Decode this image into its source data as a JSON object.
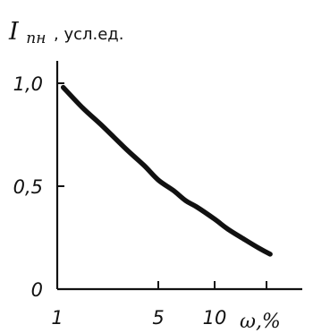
{
  "chart_data": {
    "type": "line",
    "title": "",
    "ylabel": "I",
    "ylabel_subscript": "пн",
    "ylabel_units": ", усл.ед.",
    "xlabel": "ω,%",
    "x_scale": "log",
    "xlim": [
      1,
      20
    ],
    "ylim": [
      0,
      1.0
    ],
    "x_ticks": [
      {
        "value": 1,
        "label": "1"
      },
      {
        "value": 5,
        "label": "5"
      },
      {
        "value": 10,
        "label": "10"
      }
    ],
    "x_tick_unlabeled": [
      20
    ],
    "y_ticks": [
      {
        "value": 0,
        "label": "0"
      },
      {
        "value": 0.5,
        "label": "0,5"
      },
      {
        "value": 1.0,
        "label": "1,0"
      }
    ],
    "grid": false,
    "legend": "none",
    "series": [
      {
        "x": [
          1.1,
          1.5,
          2,
          3,
          4,
          5,
          6,
          7,
          8,
          10,
          12,
          15,
          18,
          21
        ],
        "y": [
          0.98,
          0.88,
          0.8,
          0.68,
          0.6,
          0.53,
          0.48,
          0.43,
          0.4,
          0.34,
          0.29,
          0.24,
          0.2,
          0.17
        ]
      }
    ],
    "colors": {
      "line": "#111111",
      "axis": "#111111",
      "background": "#ffffff"
    }
  }
}
